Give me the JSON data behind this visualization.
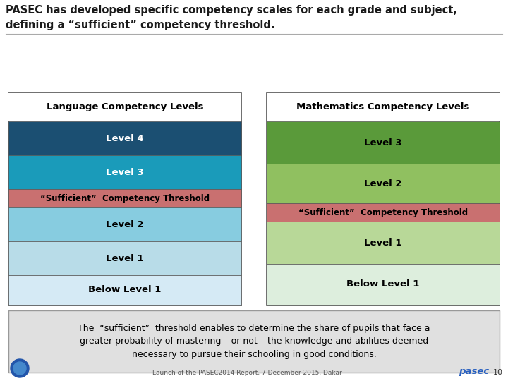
{
  "title": "PASEC has developed specific competency scales for each grade and subject,\ndefining a “sufficient” competency threshold.",
  "lang_title": "Language Competency Levels",
  "math_title": "Mathematics Competency Levels",
  "lang_levels": [
    "Level 4",
    "Level 3",
    "“Sufficient”  Competency Threshold",
    "Level 2",
    "Level 1",
    "Below Level 1"
  ],
  "math_levels": [
    "Level 3",
    "Level 2",
    "“Sufficient”  Competency Threshold",
    "Level 1",
    "Below Level 1"
  ],
  "lang_colors": [
    "#1b4f72",
    "#1a9bba",
    "#c97070",
    "#87cce0",
    "#b8dce8",
    "#d5eaf5"
  ],
  "math_colors": [
    "#5a9a3a",
    "#90c060",
    "#c97070",
    "#b8d898",
    "#ddeedd"
  ],
  "lang_text_colors": [
    "white",
    "white",
    "black",
    "black",
    "black",
    "black"
  ],
  "math_text_colors": [
    "black",
    "black",
    "black",
    "black",
    "black"
  ],
  "bottom_text": "The  “sufficient”  threshold enables to determine the share of pupils that face a\ngreater probability of mastering – or not – the knowledge and abilities deemed\nnecessary to pursue their schooling in good conditions.",
  "footer_text": "Launch of the PASEC2014 Report, 7 December 2015, Dakar",
  "footer_page": "10",
  "footer_brand": "pasec",
  "bg_color": "#ffffff",
  "box_bg": "#e0e0e0",
  "title_color": "#1a1a1a",
  "border_color": "#555555",
  "line_color": "#aaaaaa"
}
